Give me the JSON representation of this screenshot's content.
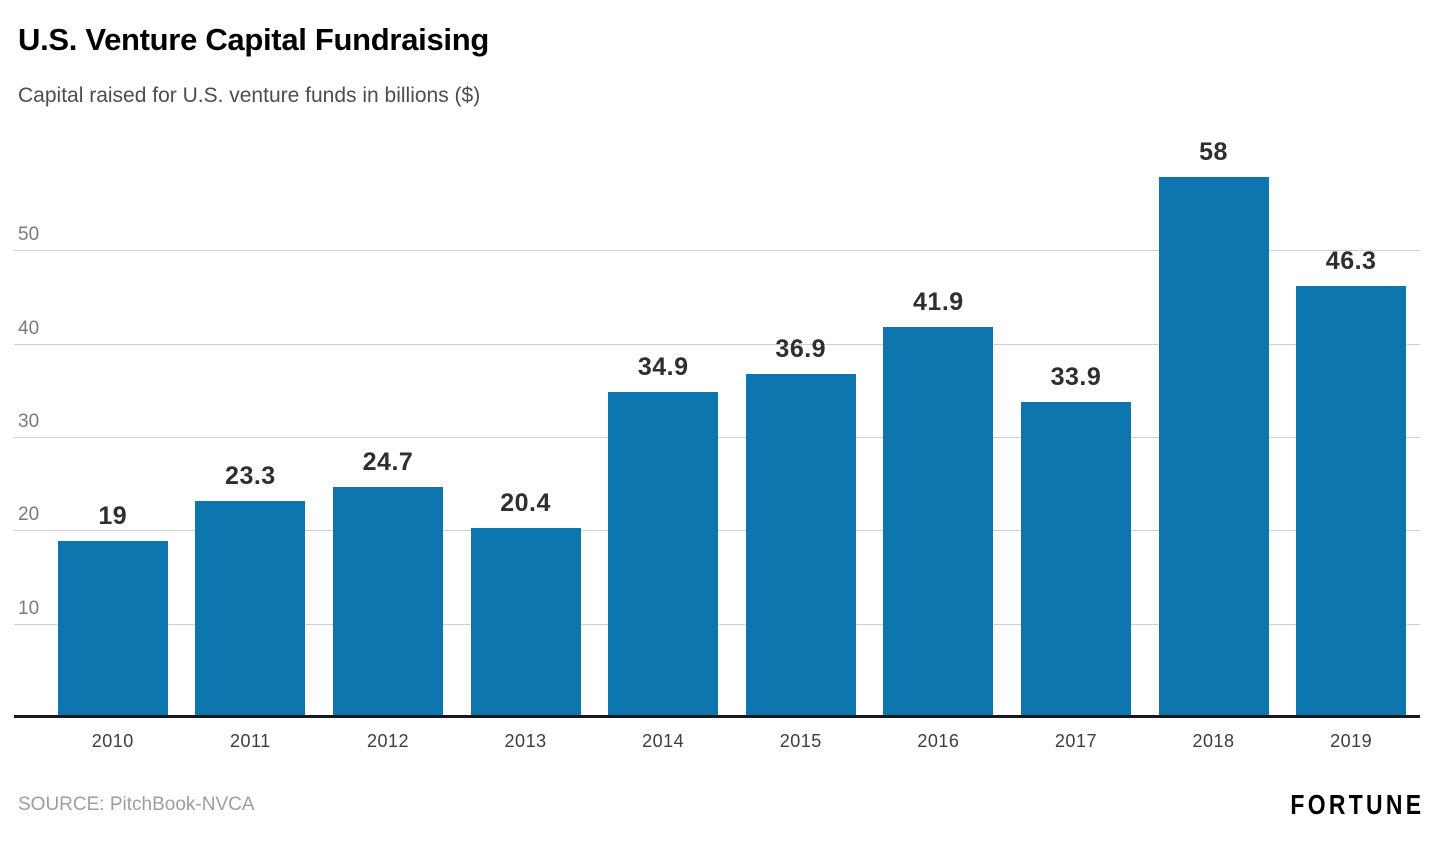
{
  "header": {
    "title": "U.S. Venture Capital Fundraising",
    "subtitle": "Capital raised for U.S. venture funds in billions ($)"
  },
  "footer": {
    "source": "SOURCE: PitchBook-NVCA",
    "brand": "FORTUNE"
  },
  "chart_data": {
    "type": "bar",
    "title": "U.S. Venture Capital Fundraising",
    "subtitle": "Capital raised for U.S. venture funds in billions ($)",
    "categories": [
      "2010",
      "2011",
      "2012",
      "2013",
      "2014",
      "2015",
      "2016",
      "2017",
      "2018",
      "2019"
    ],
    "values": [
      19,
      23.3,
      24.7,
      20.4,
      34.9,
      36.9,
      41.9,
      33.9,
      58,
      46.3
    ],
    "value_labels": [
      "19",
      "23.3",
      "24.7",
      "20.4",
      "34.9",
      "36.9",
      "41.9",
      "33.9",
      "58",
      "46.3"
    ],
    "xlabel": "",
    "ylabel": "",
    "yticks": [
      10,
      20,
      30,
      40,
      50
    ],
    "ylim": [
      0,
      63
    ],
    "grid": "horizontal",
    "legend": "none",
    "colors": {
      "bar": "#0e76ae",
      "gridline": "#cfcfcf",
      "axis": "#1a1a1a",
      "value_label": "#2e2e2e",
      "tick_label": "#7a7a7a"
    }
  }
}
